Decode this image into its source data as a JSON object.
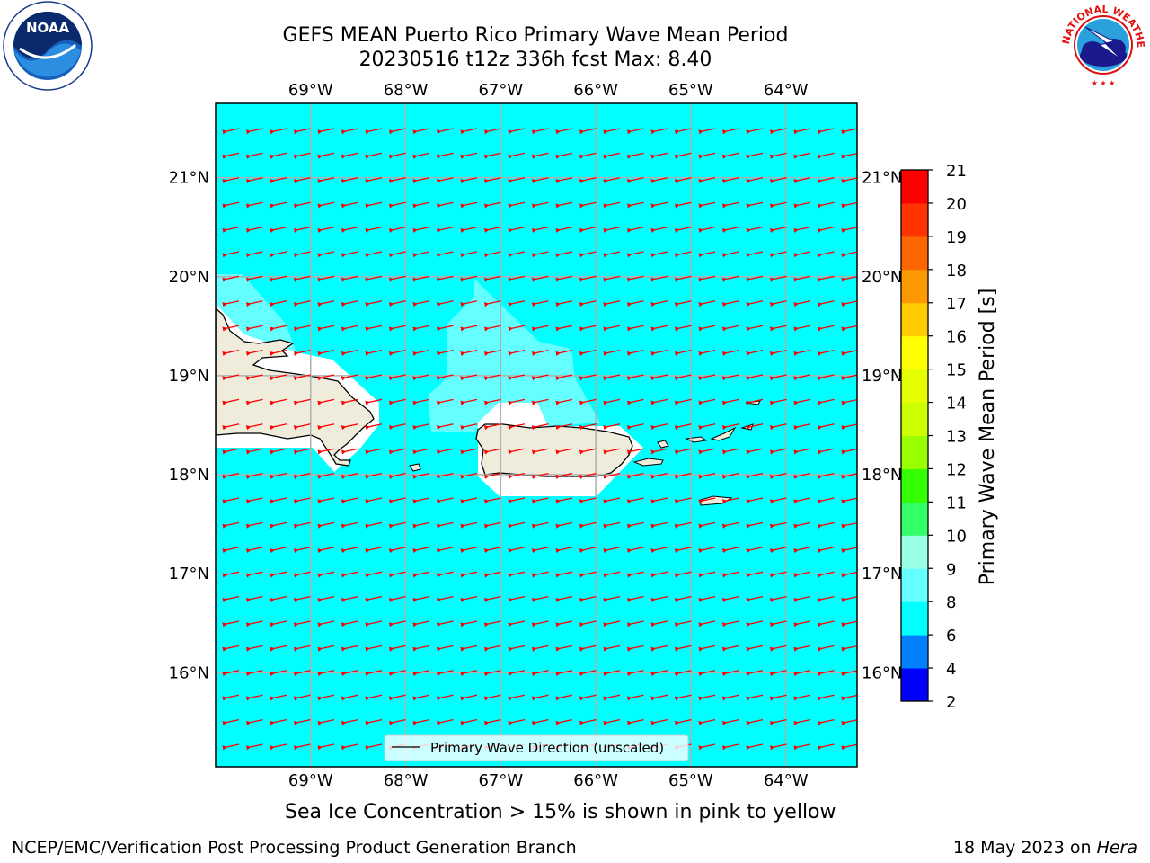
{
  "header": {
    "title_line1": "GEFS MEAN Puerto Rico Primary Wave Mean Period",
    "title_line2": "20230516 t12z 336h fcst   Max: 8.40"
  },
  "map": {
    "lon_labels": [
      "69°W",
      "68°W",
      "67°W",
      "66°W",
      "65°W",
      "64°W"
    ],
    "lat_labels": [
      "21°N",
      "20°N",
      "19°N",
      "18°N",
      "17°N",
      "16°N"
    ],
    "lon_values": [
      -69,
      -68,
      -67,
      -66,
      -65,
      -64
    ],
    "lat_values": [
      21,
      20,
      19,
      18,
      17,
      16
    ],
    "lon_range": [
      -70,
      -63.25
    ],
    "lat_range": [
      15.05,
      21.75
    ],
    "ocean_color": "#00ffff",
    "land_color": "#f0ecdc",
    "arrow_color": "#ff0000",
    "grid": true,
    "primary_wave_direction": "westward (towards west-southwest)"
  },
  "legend": {
    "label": "Primary Wave Direction (unscaled)"
  },
  "colorbar": {
    "label": "Primary Wave Mean Period [s]",
    "ticks": [
      "2",
      "4",
      "6",
      "8",
      "9",
      "10",
      "11",
      "12",
      "13",
      "14",
      "15",
      "16",
      "17",
      "18",
      "19",
      "20",
      "21"
    ],
    "colors": [
      "#0000ff",
      "#0080ff",
      "#00ffff",
      "#66ffff",
      "#99ffe6",
      "#33ff66",
      "#33ff00",
      "#99ff00",
      "#ccff00",
      "#e6ff00",
      "#ffff00",
      "#ffcc00",
      "#ff9900",
      "#ff6600",
      "#ff3300",
      "#ff0000"
    ]
  },
  "subtitle": "Sea Ice Concentration > 15% is shown in pink to yellow",
  "footer": {
    "left": "NCEP/EMC/Verification Post Processing Product Generation Branch",
    "right_prefix": "18 May 2023 on ",
    "right_host": "Hera"
  },
  "logos": {
    "noaa": "NOAA",
    "nws": "NATIONAL WEATHER SERVICE"
  }
}
